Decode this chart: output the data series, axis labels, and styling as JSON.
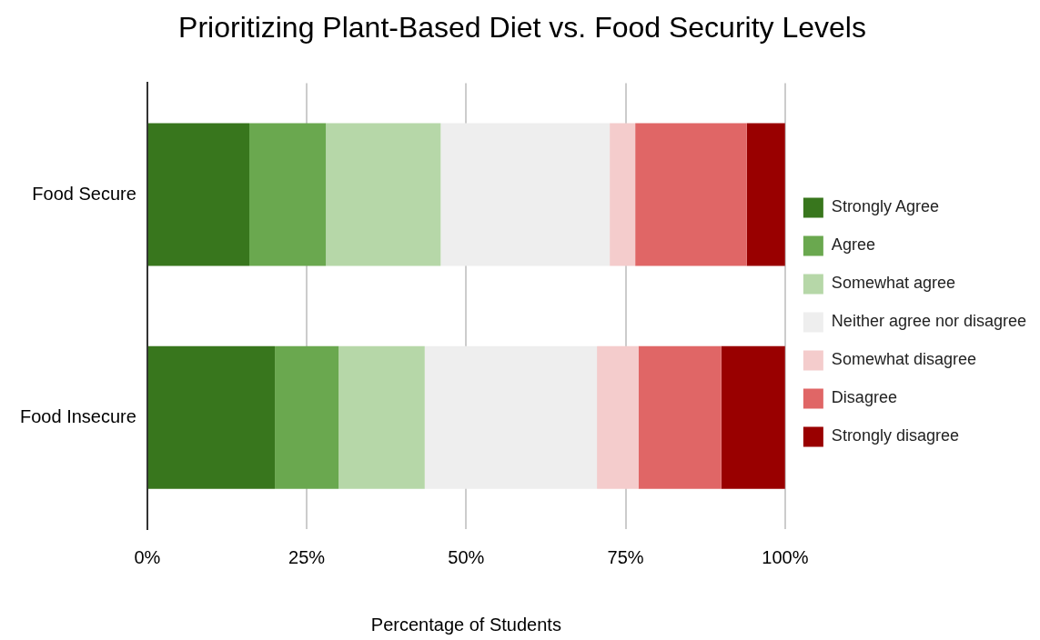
{
  "chart_data": {
    "type": "bar",
    "title": "Prioritizing Plant-Based Diet vs. Food Security Levels",
    "xlabel": "Percentage of Students",
    "orientation": "horizontal",
    "stacked": true,
    "categories": [
      "Food Secure",
      "Food Insecure"
    ],
    "series": [
      {
        "name": "Strongly Agree",
        "color": "#38761d",
        "values": [
          16,
          20
        ]
      },
      {
        "name": "Agree",
        "color": "#6aa84f",
        "values": [
          12,
          10
        ]
      },
      {
        "name": "Somewhat agree",
        "color": "#b6d7a8",
        "values": [
          18,
          13.5
        ]
      },
      {
        "name": "Neither agree nor disagree",
        "color": "#eeeeee",
        "values": [
          26.5,
          27
        ]
      },
      {
        "name": "Somewhat disagree",
        "color": "#f4cccc",
        "values": [
          4,
          6.5
        ]
      },
      {
        "name": "Disagree",
        "color": "#e06666",
        "values": [
          17.5,
          13
        ]
      },
      {
        "name": "Strongly disagree",
        "color": "#990000",
        "values": [
          6,
          10
        ]
      }
    ],
    "xlim": [
      0,
      100
    ],
    "xticks": [
      {
        "value": 0,
        "label": "0%"
      },
      {
        "value": 25,
        "label": "25%"
      },
      {
        "value": 50,
        "label": "50%"
      },
      {
        "value": 75,
        "label": "75%"
      },
      {
        "value": 100,
        "label": "100%"
      }
    ],
    "grid": "x",
    "legend": "right"
  }
}
